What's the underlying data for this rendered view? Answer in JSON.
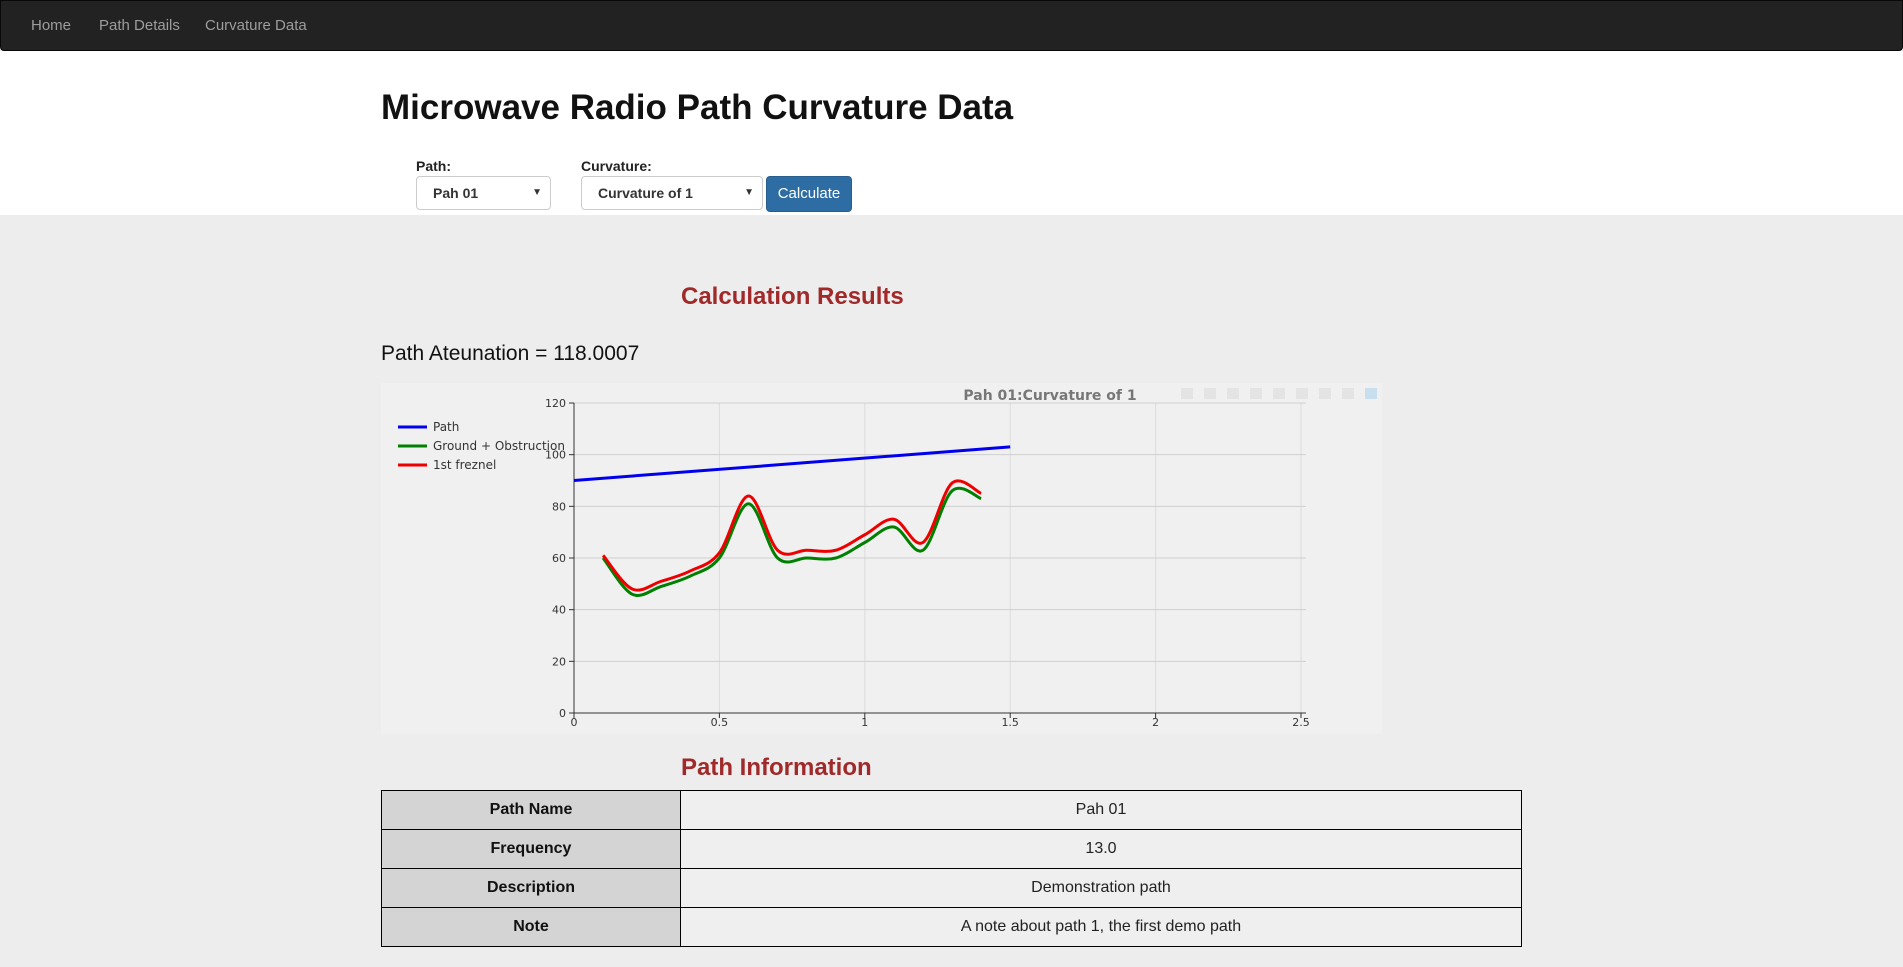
{
  "nav": {
    "items": [
      "Home",
      "Path Details",
      "Curvature Data"
    ]
  },
  "page": {
    "title": "Microwave Radio Path Curvature Data"
  },
  "form": {
    "path_label": "Path:",
    "path_value": "Pah 01",
    "curvature_label": "Curvature:",
    "curvature_value": "Curvature of 1",
    "calculate_label": "Calculate"
  },
  "results": {
    "title": "Calculation Results",
    "attenuation_text": "Path Ateunation = 118.0007"
  },
  "chart_data": {
    "type": "line",
    "title": "Pah 01:Curvature of 1",
    "xlim": [
      0,
      2.5
    ],
    "ylim": [
      0,
      120
    ],
    "xticks": [
      0,
      0.5,
      1,
      1.5,
      2,
      2.5
    ],
    "yticks": [
      0,
      20,
      40,
      60,
      80,
      100,
      120
    ],
    "grid": true,
    "legend_position": "top-left",
    "series": [
      {
        "name": "Path",
        "color": "#0000ee",
        "smooth": false,
        "x": [
          0,
          1.5
        ],
        "y": [
          90,
          103
        ]
      },
      {
        "name": "Ground + Obstruction",
        "color": "#008000",
        "smooth": true,
        "x": [
          0.1,
          0.2,
          0.3,
          0.4,
          0.5,
          0.6,
          0.7,
          0.8,
          0.9,
          1.0,
          1.1,
          1.2,
          1.3,
          1.4
        ],
        "y": [
          60,
          46,
          49,
          53,
          60,
          81,
          60,
          60,
          60,
          66,
          72,
          63,
          86,
          83
        ]
      },
      {
        "name": "1st freznel",
        "color": "#ee0000",
        "smooth": true,
        "x": [
          0.1,
          0.2,
          0.3,
          0.4,
          0.5,
          0.6,
          0.7,
          0.8,
          0.9,
          1.0,
          1.1,
          1.2,
          1.3,
          1.4
        ],
        "y": [
          61,
          48,
          51,
          55,
          62,
          84,
          63,
          63,
          63,
          69,
          75,
          66,
          89,
          85
        ]
      }
    ]
  },
  "info": {
    "title": "Path Information",
    "rows": [
      {
        "key": "Path Name",
        "value": "Pah 01"
      },
      {
        "key": "Frequency",
        "value": "13.0"
      },
      {
        "key": "Description",
        "value": "Demonstration path"
      },
      {
        "key": "Note",
        "value": "A note about path 1, the first demo path"
      }
    ]
  }
}
